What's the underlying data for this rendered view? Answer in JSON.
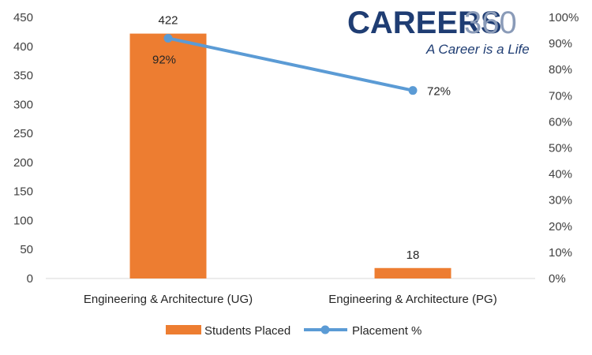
{
  "chart_data": {
    "type": "bar",
    "categories": [
      "Engineering & Architecture (UG)",
      "Engineering & Architecture (PG)"
    ],
    "series": [
      {
        "name": "Students Placed",
        "type": "bar",
        "axis": "left",
        "values": [
          422,
          18
        ],
        "labels": [
          "422",
          "18"
        ],
        "color": "#ed7d31"
      },
      {
        "name": "Placement %",
        "type": "line",
        "axis": "right",
        "values": [
          92,
          72
        ],
        "labels": [
          "92%",
          "72%"
        ],
        "color": "#5b9bd5"
      }
    ],
    "yleft": {
      "min": 0,
      "max": 450,
      "step": 50
    },
    "yright": {
      "min": 0,
      "max": 100,
      "step": 10,
      "format": "percent"
    },
    "legend": "bottom",
    "grid": false
  },
  "watermark": {
    "brand": "CAREERS",
    "number": "360",
    "tagline": "A Career is a Life"
  }
}
